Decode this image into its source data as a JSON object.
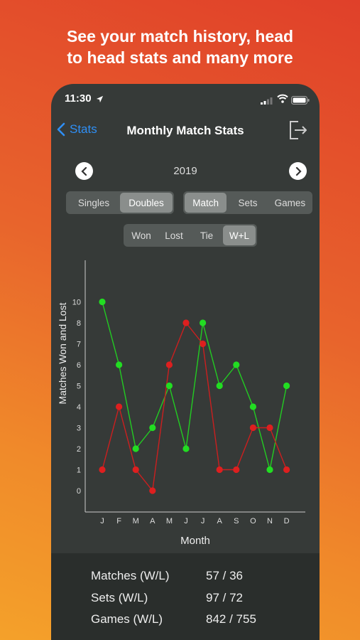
{
  "promo": {
    "line1": "See your match history, head",
    "line2": "to head stats and many more"
  },
  "status_bar": {
    "time": "11:30"
  },
  "nav": {
    "back_label": "Stats",
    "title": "Monthly Match Stats"
  },
  "year_selector": {
    "year": "2019"
  },
  "segments": {
    "type": {
      "options": [
        "Singles",
        "Doubles"
      ],
      "selected": "Doubles"
    },
    "metric": {
      "options": [
        "Match",
        "Sets",
        "Games"
      ],
      "selected": "Match"
    },
    "result": {
      "options": [
        "Won",
        "Lost",
        "Tie",
        "W+L"
      ],
      "selected": "W+L"
    }
  },
  "chart_data": {
    "type": "line",
    "xlabel": "Month",
    "ylabel": "Matches Won and Lost",
    "categories": [
      "J",
      "F",
      "M",
      "A",
      "M",
      "J",
      "J",
      "A",
      "S",
      "O",
      "N",
      "D"
    ],
    "y_ticks": [
      "0",
      "1",
      "2",
      "3",
      "4",
      "5",
      "6",
      "7",
      "8",
      "10"
    ],
    "series": [
      {
        "color": "#22dd22",
        "values": [
          10,
          6,
          2,
          3,
          5,
          2,
          8,
          5,
          6,
          4,
          1,
          5
        ]
      },
      {
        "color": "#dd1f1f",
        "values": [
          1,
          4,
          1,
          0,
          6,
          8,
          7,
          1,
          1,
          3,
          3,
          1
        ]
      }
    ],
    "grid": false
  },
  "summary": {
    "rows": [
      {
        "label": "Matches (W/L)",
        "value": "57 / 36"
      },
      {
        "label": "Sets (W/L)",
        "value": "97 / 72"
      },
      {
        "label": "Games (W/L)",
        "value": "842 / 755"
      }
    ]
  }
}
